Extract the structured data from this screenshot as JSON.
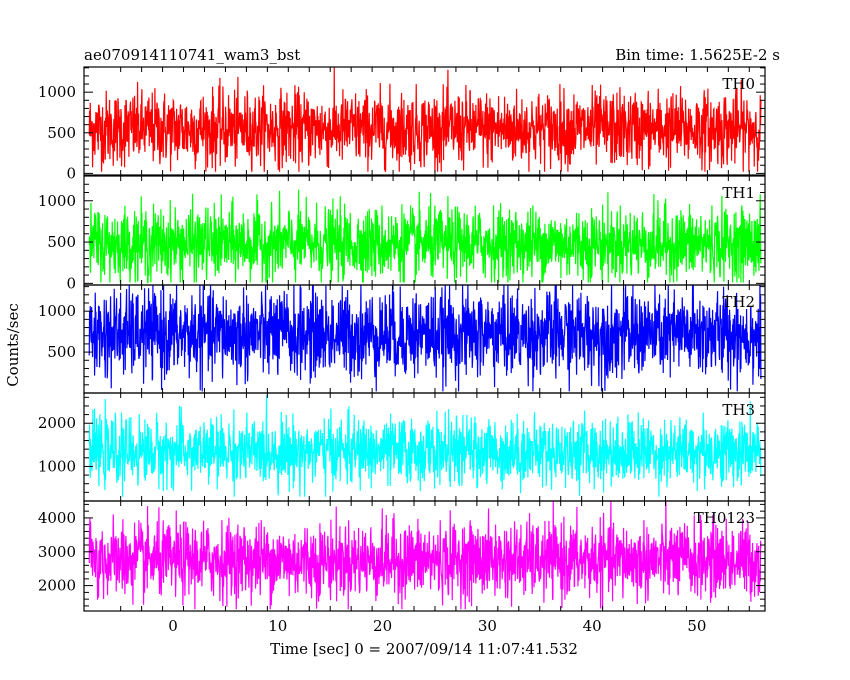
{
  "header": {
    "title": "ae070914110741_wam3_bst",
    "bin_time": "Bin time: 1.5625E-2 s"
  },
  "chart_data": {
    "type": "line",
    "title": "ae070914110741_wam3_bst",
    "subtitle": "Bin time: 1.5625E-2 s",
    "xlabel": "Time [sec] 0 = 2007/09/14 11:07:41.532",
    "ylabel": "Counts/sec",
    "xlim": [
      -8.5,
      56.5
    ],
    "data_range": [
      -8,
      56
    ],
    "bin_time": 0.015625,
    "x_ticks": [
      0,
      10,
      20,
      30,
      40,
      50
    ],
    "grid": false,
    "panels": [
      {
        "name": "TH0",
        "color": "#ff0000",
        "ylim": [
          -20,
          1310
        ],
        "y_ticks": [
          0,
          500,
          1000
        ],
        "mean": 550,
        "noise_sd": 230,
        "min": 20,
        "max": 1310
      },
      {
        "name": "TH1",
        "color": "#00ff00",
        "ylim": [
          -20,
          1300
        ],
        "y_ticks": [
          0,
          500,
          1000
        ],
        "mean": 480,
        "noise_sd": 220,
        "min": 10,
        "max": 1300
      },
      {
        "name": "TH2",
        "color": "#0000ff",
        "ylim": [
          0,
          1320
        ],
        "y_ticks": [
          500,
          1000
        ],
        "mean": 720,
        "noise_sd": 270,
        "min": 20,
        "max": 1320
      },
      {
        "name": "TH3",
        "color": "#00ffff",
        "ylim": [
          200,
          2700
        ],
        "y_ticks": [
          1000,
          2000
        ],
        "mean": 1350,
        "noise_sd": 380,
        "min": 300,
        "max": 2650
      },
      {
        "name": "TH0123",
        "color": "#ff00ff",
        "ylim": [
          1250,
          4500
        ],
        "y_ticks": [
          2000,
          3000,
          4000
        ],
        "mean": 2750,
        "noise_sd": 560,
        "min": 1300,
        "max": 4500
      }
    ]
  }
}
